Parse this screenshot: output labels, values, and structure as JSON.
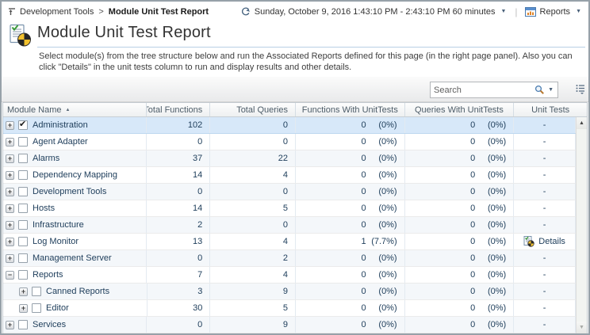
{
  "breadcrumb": {
    "root": "Development Tools",
    "separator": ">",
    "current": "Module Unit Test Report"
  },
  "topbar": {
    "time_range": "Sunday, October 9, 2016 1:43:10 PM - 2:43:10 PM 60 minutes",
    "reports": "Reports"
  },
  "page": {
    "title": "Module Unit Test Report",
    "description": "Select module(s) from the tree structure below and run the Associated Reports defined for this page (in the right page panel). Also you can click \"Details\" in the unit tests column to run and display results and other details."
  },
  "toolbar": {
    "search_placeholder": "Search"
  },
  "grid": {
    "columns": [
      {
        "label": "Module Name",
        "sort": "asc"
      },
      {
        "label": "Total Functions"
      },
      {
        "label": "Total Queries"
      },
      {
        "label": "Functions With UnitTests"
      },
      {
        "label": "Queries With UnitTests"
      },
      {
        "label": "Unit Tests"
      }
    ],
    "rows": [
      {
        "module": "Administration",
        "level": 0,
        "expander": "collapsed",
        "checked": true,
        "selected": true,
        "total_functions": "102",
        "total_queries": "0",
        "functions_with_unittests": {
          "count": "0",
          "pct": "(0%)"
        },
        "queries_with_unittests": {
          "count": "0",
          "pct": "(0%)"
        },
        "unit_tests": {
          "type": "dash",
          "label": "-"
        }
      },
      {
        "module": "Agent Adapter",
        "level": 0,
        "expander": "collapsed",
        "checked": false,
        "selected": false,
        "total_functions": "0",
        "total_queries": "0",
        "functions_with_unittests": {
          "count": "0",
          "pct": "(0%)"
        },
        "queries_with_unittests": {
          "count": "0",
          "pct": "(0%)"
        },
        "unit_tests": {
          "type": "dash",
          "label": "-"
        }
      },
      {
        "module": "Alarms",
        "level": 0,
        "expander": "collapsed",
        "checked": false,
        "selected": false,
        "total_functions": "37",
        "total_queries": "22",
        "functions_with_unittests": {
          "count": "0",
          "pct": "(0%)"
        },
        "queries_with_unittests": {
          "count": "0",
          "pct": "(0%)"
        },
        "unit_tests": {
          "type": "dash",
          "label": "-"
        }
      },
      {
        "module": "Dependency Mapping",
        "level": 0,
        "expander": "collapsed",
        "checked": false,
        "selected": false,
        "total_functions": "14",
        "total_queries": "4",
        "functions_with_unittests": {
          "count": "0",
          "pct": "(0%)"
        },
        "queries_with_unittests": {
          "count": "0",
          "pct": "(0%)"
        },
        "unit_tests": {
          "type": "dash",
          "label": "-"
        }
      },
      {
        "module": "Development Tools",
        "level": 0,
        "expander": "collapsed",
        "checked": false,
        "selected": false,
        "total_functions": "0",
        "total_queries": "0",
        "functions_with_unittests": {
          "count": "0",
          "pct": "(0%)"
        },
        "queries_with_unittests": {
          "count": "0",
          "pct": "(0%)"
        },
        "unit_tests": {
          "type": "dash",
          "label": "-"
        }
      },
      {
        "module": "Hosts",
        "level": 0,
        "expander": "collapsed",
        "checked": false,
        "selected": false,
        "total_functions": "14",
        "total_queries": "5",
        "functions_with_unittests": {
          "count": "0",
          "pct": "(0%)"
        },
        "queries_with_unittests": {
          "count": "0",
          "pct": "(0%)"
        },
        "unit_tests": {
          "type": "dash",
          "label": "-"
        }
      },
      {
        "module": "Infrastructure",
        "level": 0,
        "expander": "collapsed",
        "checked": false,
        "selected": false,
        "total_functions": "2",
        "total_queries": "0",
        "functions_with_unittests": {
          "count": "0",
          "pct": "(0%)"
        },
        "queries_with_unittests": {
          "count": "0",
          "pct": "(0%)"
        },
        "unit_tests": {
          "type": "dash",
          "label": "-"
        }
      },
      {
        "module": "Log Monitor",
        "level": 0,
        "expander": "collapsed",
        "checked": false,
        "selected": false,
        "total_functions": "13",
        "total_queries": "4",
        "functions_with_unittests": {
          "count": "1",
          "pct": "(7.7%)"
        },
        "queries_with_unittests": {
          "count": "0",
          "pct": "(0%)"
        },
        "unit_tests": {
          "type": "details",
          "label": "Details"
        }
      },
      {
        "module": "Management Server",
        "level": 0,
        "expander": "collapsed",
        "checked": false,
        "selected": false,
        "total_functions": "0",
        "total_queries": "2",
        "functions_with_unittests": {
          "count": "0",
          "pct": "(0%)"
        },
        "queries_with_unittests": {
          "count": "0",
          "pct": "(0%)"
        },
        "unit_tests": {
          "type": "dash",
          "label": "-"
        }
      },
      {
        "module": "Reports",
        "level": 0,
        "expander": "expanded",
        "checked": false,
        "selected": false,
        "total_functions": "7",
        "total_queries": "4",
        "functions_with_unittests": {
          "count": "0",
          "pct": "(0%)"
        },
        "queries_with_unittests": {
          "count": "0",
          "pct": "(0%)"
        },
        "unit_tests": {
          "type": "dash",
          "label": "-"
        }
      },
      {
        "module": "Canned Reports",
        "level": 1,
        "expander": "collapsed",
        "checked": false,
        "selected": false,
        "total_functions": "3",
        "total_queries": "9",
        "functions_with_unittests": {
          "count": "0",
          "pct": "(0%)"
        },
        "queries_with_unittests": {
          "count": "0",
          "pct": "(0%)"
        },
        "unit_tests": {
          "type": "dash",
          "label": "-"
        }
      },
      {
        "module": "Editor",
        "level": 1,
        "expander": "collapsed",
        "checked": false,
        "selected": false,
        "total_functions": "30",
        "total_queries": "5",
        "functions_with_unittests": {
          "count": "0",
          "pct": "(0%)"
        },
        "queries_with_unittests": {
          "count": "0",
          "pct": "(0%)"
        },
        "unit_tests": {
          "type": "dash",
          "label": "-"
        }
      },
      {
        "module": "Services",
        "level": 0,
        "expander": "collapsed",
        "checked": false,
        "selected": false,
        "total_functions": "0",
        "total_queries": "9",
        "functions_with_unittests": {
          "count": "0",
          "pct": "(0%)"
        },
        "queries_with_unittests": {
          "count": "0",
          "pct": "(0%)"
        },
        "unit_tests": {
          "type": "dash",
          "label": "-"
        }
      }
    ]
  },
  "icons": {
    "sort_asc": "▲",
    "dropdown": "▼",
    "expand": "+",
    "collapse": "−",
    "checkmark": "✔",
    "scroll_up": "▲",
    "scroll_down": "▼"
  },
  "colors": {
    "selection": "#d7e8f9",
    "stripe": "#f4f7fa",
    "rule_blue": "#b9cfe4",
    "pie_yellow": "#f2c12e"
  }
}
